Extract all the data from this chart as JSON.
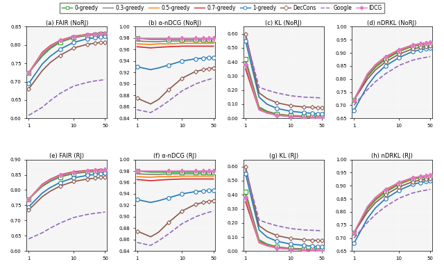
{
  "series_colors": {
    "0-greedy": "#2ca02c",
    "0.3-greedy": "#7f7f7f",
    "0.5-greedy": "#ff7f0e",
    "0.7-greedy": "#d62728",
    "1-greedy": "#1f77b4",
    "DecCons": "#8c564b",
    "Google": "#9467bd",
    "IDCG": "#e377c2"
  },
  "series_styles": {
    "0-greedy": {
      "ls": "-",
      "marker": "s",
      "ms": 4,
      "lw": 1.2
    },
    "0.3-greedy": {
      "ls": "-",
      "marker": null,
      "ms": 0,
      "lw": 1.2
    },
    "0.5-greedy": {
      "ls": "-",
      "marker": null,
      "ms": 0,
      "lw": 1.2
    },
    "0.7-greedy": {
      "ls": "-",
      "marker": null,
      "ms": 0,
      "lw": 1.2
    },
    "1-greedy": {
      "ls": "-",
      "marker": "o",
      "ms": 4,
      "lw": 1.2
    },
    "DecCons": {
      "ls": "-",
      "marker": "D",
      "ms": 3,
      "lw": 1.2
    },
    "Google": {
      "ls": "--",
      "marker": null,
      "ms": 0,
      "lw": 1.2
    },
    "IDCG": {
      "ls": "-",
      "marker": "P",
      "ms": 4,
      "lw": 1.2
    }
  },
  "x_vals": [
    1,
    2,
    3,
    5,
    10,
    20,
    30,
    40,
    50
  ],
  "subplots": {
    "a_fair_norj": {
      "title": "(a) FAIR (NoRJ)",
      "ylim": [
        0.6,
        0.85
      ],
      "yticks": [
        0.6,
        0.65,
        0.7,
        0.75,
        0.8,
        0.85
      ],
      "data": {
        "0-greedy": [
          0.724,
          0.77,
          0.79,
          0.808,
          0.82,
          0.826,
          0.828,
          0.829,
          0.83
        ],
        "0.3-greedy": [
          0.724,
          0.775,
          0.793,
          0.81,
          0.822,
          0.827,
          0.829,
          0.83,
          0.831
        ],
        "0.5-greedy": [
          0.724,
          0.778,
          0.796,
          0.812,
          0.823,
          0.828,
          0.83,
          0.831,
          0.832
        ],
        "0.7-greedy": [
          0.724,
          0.78,
          0.798,
          0.813,
          0.824,
          0.829,
          0.831,
          0.832,
          0.833
        ],
        "1-greedy": [
          0.695,
          0.748,
          0.769,
          0.789,
          0.807,
          0.817,
          0.82,
          0.822,
          0.824
        ],
        "DecCons": [
          0.68,
          0.73,
          0.752,
          0.772,
          0.792,
          0.802,
          0.805,
          0.807,
          0.808
        ],
        "Google": [
          0.608,
          0.63,
          0.648,
          0.668,
          0.688,
          0.698,
          0.702,
          0.704,
          0.706
        ],
        "IDCG": [
          0.724,
          0.778,
          0.796,
          0.812,
          0.823,
          0.828,
          0.83,
          0.831,
          0.832
        ]
      }
    },
    "b_alpha_norj": {
      "title": "(b) α-nDCG (NoRJ)",
      "ylim": [
        0.84,
        1.0
      ],
      "yticks": [
        0.84,
        0.86,
        0.88,
        0.9,
        0.92,
        0.94,
        0.96,
        0.98,
        1.0
      ],
      "data": {
        "0-greedy": [
          0.98,
          0.978,
          0.978,
          0.978,
          0.978,
          0.978,
          0.978,
          0.978,
          0.978
        ],
        "0.3-greedy": [
          0.975,
          0.974,
          0.974,
          0.975,
          0.975,
          0.975,
          0.975,
          0.975,
          0.975
        ],
        "0.5-greedy": [
          0.97,
          0.969,
          0.97,
          0.97,
          0.971,
          0.971,
          0.971,
          0.971,
          0.971
        ],
        "0.7-greedy": [
          0.965,
          0.963,
          0.964,
          0.965,
          0.966,
          0.966,
          0.966,
          0.966,
          0.966
        ],
        "1-greedy": [
          0.93,
          0.925,
          0.928,
          0.933,
          0.94,
          0.944,
          0.945,
          0.946,
          0.946
        ],
        "DecCons": [
          0.875,
          0.865,
          0.873,
          0.89,
          0.91,
          0.922,
          0.925,
          0.927,
          0.928
        ],
        "Google": [
          0.855,
          0.85,
          0.858,
          0.87,
          0.888,
          0.9,
          0.905,
          0.908,
          0.91
        ],
        "IDCG": [
          0.98,
          0.98,
          0.98,
          0.98,
          0.98,
          0.98,
          0.98,
          0.98,
          0.98
        ]
      }
    },
    "c_kl_norj": {
      "title": "(c) KL (NoRJ)",
      "ylim": [
        0.0,
        0.65
      ],
      "yticks": [
        0.0,
        0.1,
        0.2,
        0.3,
        0.4,
        0.5,
        0.6
      ],
      "data": {
        "0-greedy": [
          0.42,
          0.08,
          0.05,
          0.03,
          0.02,
          0.015,
          0.013,
          0.012,
          0.011
        ],
        "0.3-greedy": [
          0.4,
          0.07,
          0.045,
          0.028,
          0.018,
          0.012,
          0.01,
          0.009,
          0.008
        ],
        "0.5-greedy": [
          0.38,
          0.065,
          0.04,
          0.025,
          0.015,
          0.01,
          0.008,
          0.007,
          0.006
        ],
        "0.7-greedy": [
          0.35,
          0.06,
          0.038,
          0.022,
          0.013,
          0.008,
          0.006,
          0.005,
          0.004
        ],
        "1-greedy": [
          0.55,
          0.15,
          0.1,
          0.07,
          0.05,
          0.04,
          0.035,
          0.032,
          0.03
        ],
        "DecCons": [
          0.6,
          0.18,
          0.14,
          0.11,
          0.09,
          0.08,
          0.078,
          0.076,
          0.075
        ],
        "Google": [
          0.58,
          0.22,
          0.2,
          0.18,
          0.16,
          0.15,
          0.148,
          0.146,
          0.144
        ],
        "IDCG": [
          0.38,
          0.06,
          0.038,
          0.022,
          0.013,
          0.008,
          0.006,
          0.005,
          0.004
        ]
      }
    },
    "d_ndrkl_norj": {
      "title": "(d) nDRKL (NoRJ)",
      "ylim": [
        0.65,
        1.0
      ],
      "yticks": [
        0.65,
        0.7,
        0.75,
        0.8,
        0.85,
        0.9,
        0.95,
        1.0
      ],
      "data": {
        "0-greedy": [
          0.72,
          0.81,
          0.845,
          0.875,
          0.905,
          0.925,
          0.93,
          0.933,
          0.935
        ],
        "0.3-greedy": [
          0.72,
          0.815,
          0.85,
          0.88,
          0.908,
          0.927,
          0.932,
          0.935,
          0.937
        ],
        "0.5-greedy": [
          0.72,
          0.818,
          0.852,
          0.882,
          0.91,
          0.928,
          0.933,
          0.936,
          0.938
        ],
        "0.7-greedy": [
          0.72,
          0.82,
          0.855,
          0.885,
          0.912,
          0.93,
          0.935,
          0.938,
          0.94
        ],
        "1-greedy": [
          0.68,
          0.775,
          0.815,
          0.85,
          0.882,
          0.905,
          0.912,
          0.916,
          0.919
        ],
        "DecCons": [
          0.72,
          0.8,
          0.835,
          0.865,
          0.895,
          0.915,
          0.921,
          0.924,
          0.926
        ],
        "Google": [
          0.7,
          0.76,
          0.79,
          0.82,
          0.852,
          0.872,
          0.879,
          0.883,
          0.886
        ],
        "IDCG": [
          0.72,
          0.82,
          0.855,
          0.885,
          0.912,
          0.93,
          0.935,
          0.938,
          0.94
        ]
      }
    },
    "e_fair_rj": {
      "title": "(e) FAIR (RJ)",
      "ylim": [
        0.6,
        0.9
      ],
      "yticks": [
        0.6,
        0.65,
        0.7,
        0.75,
        0.8,
        0.85,
        0.9
      ],
      "data": {
        "0-greedy": [
          0.77,
          0.812,
          0.828,
          0.843,
          0.854,
          0.859,
          0.861,
          0.862,
          0.863
        ],
        "0.3-greedy": [
          0.77,
          0.815,
          0.831,
          0.846,
          0.856,
          0.861,
          0.863,
          0.864,
          0.865
        ],
        "0.5-greedy": [
          0.77,
          0.817,
          0.833,
          0.848,
          0.858,
          0.862,
          0.864,
          0.865,
          0.866
        ],
        "0.7-greedy": [
          0.77,
          0.819,
          0.835,
          0.85,
          0.86,
          0.864,
          0.866,
          0.867,
          0.868
        ],
        "1-greedy": [
          0.745,
          0.79,
          0.808,
          0.825,
          0.84,
          0.848,
          0.851,
          0.853,
          0.855
        ],
        "DecCons": [
          0.735,
          0.778,
          0.796,
          0.813,
          0.828,
          0.836,
          0.839,
          0.841,
          0.843
        ],
        "Google": [
          0.64,
          0.66,
          0.675,
          0.692,
          0.71,
          0.72,
          0.724,
          0.726,
          0.728
        ],
        "IDCG": [
          0.77,
          0.817,
          0.833,
          0.848,
          0.858,
          0.862,
          0.864,
          0.865,
          0.866
        ]
      }
    },
    "f_alpha_rj": {
      "title": "(f) α-nDCG (RJ)",
      "ylim": [
        0.84,
        1.0
      ],
      "yticks": [
        0.84,
        0.86,
        0.88,
        0.9,
        0.92,
        0.94,
        0.96,
        0.98,
        1.0
      ],
      "data": {
        "0-greedy": [
          0.98,
          0.978,
          0.978,
          0.978,
          0.978,
          0.978,
          0.978,
          0.978,
          0.978
        ],
        "0.3-greedy": [
          0.975,
          0.974,
          0.974,
          0.975,
          0.975,
          0.975,
          0.975,
          0.975,
          0.975
        ],
        "0.5-greedy": [
          0.97,
          0.969,
          0.97,
          0.97,
          0.971,
          0.971,
          0.971,
          0.971,
          0.971
        ],
        "0.7-greedy": [
          0.965,
          0.963,
          0.964,
          0.965,
          0.966,
          0.966,
          0.966,
          0.966,
          0.966
        ],
        "1-greedy": [
          0.93,
          0.925,
          0.928,
          0.933,
          0.94,
          0.944,
          0.945,
          0.946,
          0.946
        ],
        "DecCons": [
          0.875,
          0.865,
          0.873,
          0.89,
          0.91,
          0.922,
          0.925,
          0.927,
          0.928
        ],
        "Google": [
          0.855,
          0.85,
          0.858,
          0.87,
          0.888,
          0.9,
          0.905,
          0.908,
          0.91
        ],
        "IDCG": [
          0.98,
          0.98,
          0.98,
          0.98,
          0.98,
          0.98,
          0.98,
          0.98,
          0.98
        ]
      }
    },
    "g_kl_rj": {
      "title": "(g) KL (RJ)",
      "ylim": [
        0.0,
        0.65
      ],
      "yticks": [
        0.0,
        0.1,
        0.2,
        0.3,
        0.4,
        0.5,
        0.6
      ],
      "data": {
        "0-greedy": [
          0.42,
          0.08,
          0.05,
          0.03,
          0.02,
          0.015,
          0.013,
          0.012,
          0.011
        ],
        "0.3-greedy": [
          0.4,
          0.07,
          0.045,
          0.028,
          0.018,
          0.012,
          0.01,
          0.009,
          0.008
        ],
        "0.5-greedy": [
          0.38,
          0.065,
          0.04,
          0.025,
          0.015,
          0.01,
          0.008,
          0.007,
          0.006
        ],
        "0.7-greedy": [
          0.35,
          0.06,
          0.038,
          0.022,
          0.013,
          0.008,
          0.006,
          0.005,
          0.004
        ],
        "1-greedy": [
          0.55,
          0.15,
          0.1,
          0.07,
          0.05,
          0.04,
          0.035,
          0.032,
          0.03
        ],
        "DecCons": [
          0.6,
          0.18,
          0.14,
          0.11,
          0.09,
          0.08,
          0.078,
          0.076,
          0.075
        ],
        "Google": [
          0.58,
          0.22,
          0.2,
          0.18,
          0.16,
          0.15,
          0.148,
          0.146,
          0.144
        ],
        "IDCG": [
          0.38,
          0.06,
          0.038,
          0.022,
          0.013,
          0.008,
          0.006,
          0.005,
          0.004
        ]
      }
    },
    "h_ndrkl_rj": {
      "title": "(h) nDRKL (RJ)",
      "ylim": [
        0.65,
        1.0
      ],
      "yticks": [
        0.65,
        0.7,
        0.75,
        0.8,
        0.85,
        0.9,
        0.95,
        1.0
      ],
      "data": {
        "0-greedy": [
          0.72,
          0.81,
          0.845,
          0.875,
          0.905,
          0.925,
          0.93,
          0.933,
          0.935
        ],
        "0.3-greedy": [
          0.72,
          0.815,
          0.85,
          0.88,
          0.908,
          0.927,
          0.932,
          0.935,
          0.937
        ],
        "0.5-greedy": [
          0.72,
          0.818,
          0.852,
          0.882,
          0.91,
          0.928,
          0.933,
          0.936,
          0.938
        ],
        "0.7-greedy": [
          0.72,
          0.82,
          0.855,
          0.885,
          0.912,
          0.93,
          0.935,
          0.938,
          0.94
        ],
        "1-greedy": [
          0.68,
          0.775,
          0.815,
          0.85,
          0.882,
          0.905,
          0.912,
          0.916,
          0.919
        ],
        "DecCons": [
          0.72,
          0.8,
          0.835,
          0.865,
          0.895,
          0.915,
          0.921,
          0.924,
          0.926
        ],
        "Google": [
          0.7,
          0.76,
          0.79,
          0.82,
          0.852,
          0.872,
          0.879,
          0.883,
          0.886
        ],
        "IDCG": [
          0.72,
          0.82,
          0.855,
          0.885,
          0.912,
          0.93,
          0.935,
          0.938,
          0.94
        ]
      }
    }
  },
  "series_order": [
    "0-greedy",
    "0.3-greedy",
    "0.5-greedy",
    "0.7-greedy",
    "1-greedy",
    "DecCons",
    "Google",
    "IDCG"
  ],
  "subplot_order": [
    "a_fair_norj",
    "b_alpha_norj",
    "c_kl_norj",
    "d_ndrkl_norj",
    "e_fair_rj",
    "f_alpha_rj",
    "g_kl_rj",
    "h_ndrkl_rj"
  ],
  "background": "#f5f5f5"
}
